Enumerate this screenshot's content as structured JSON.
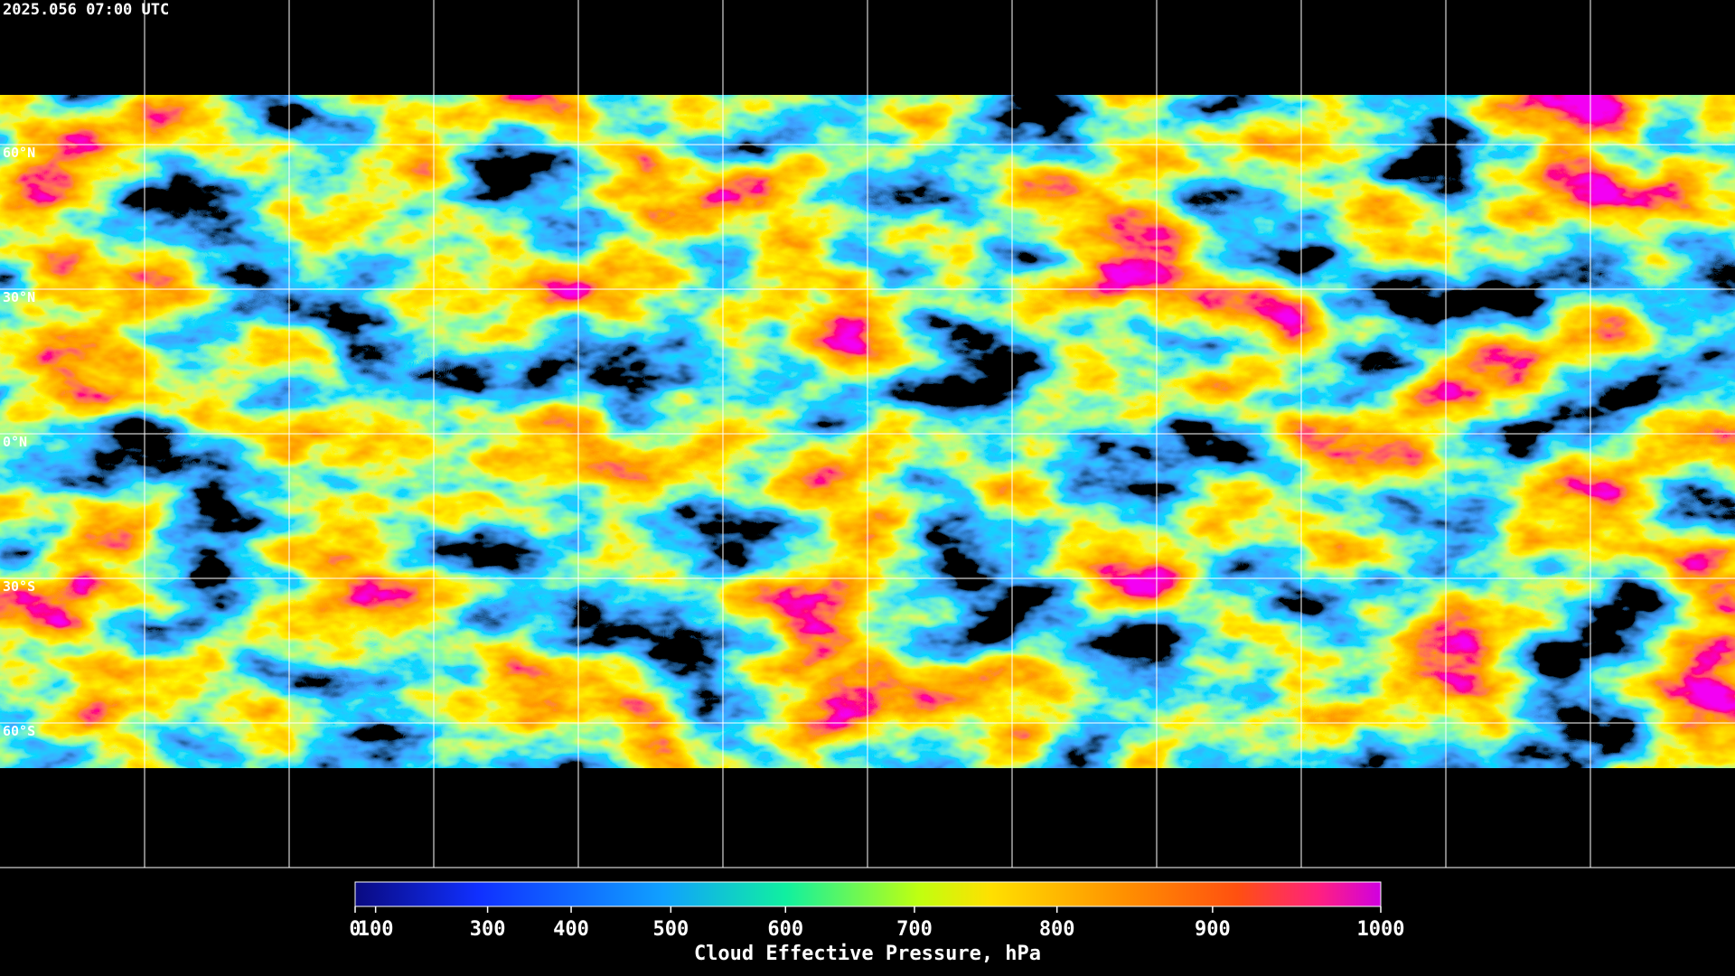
{
  "header": {
    "timestamp": "2025.056 07:00 UTC"
  },
  "map": {
    "latitudes": [
      {
        "value": 60,
        "label": "60°N"
      },
      {
        "value": 30,
        "label": "30°N"
      },
      {
        "value": 0,
        "label": "0°N"
      },
      {
        "value": -30,
        "label": "30°S"
      },
      {
        "value": -60,
        "label": "60°S"
      }
    ]
  },
  "colorbar": {
    "title": "Cloud Effective Pressure, hPa",
    "lim": [
      0,
      1000
    ],
    "ticks": [
      0,
      100,
      300,
      400,
      500,
      600,
      700,
      800,
      900,
      1000
    ]
  }
}
